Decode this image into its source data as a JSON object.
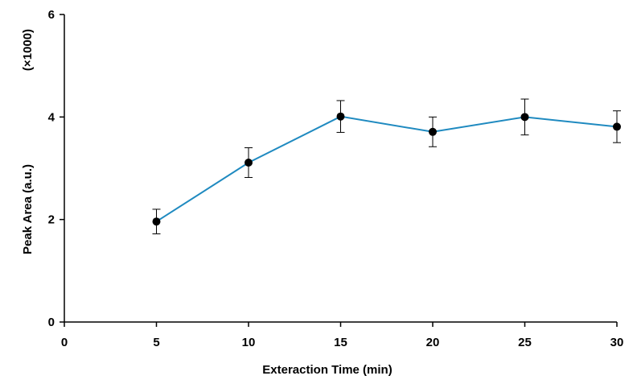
{
  "chart_data": {
    "type": "line",
    "title": "",
    "xlabel": "Exteraction Time (min)",
    "ylabel": "Peak Area (a.u.)",
    "yscale_note": "(×1000)",
    "xlim": [
      0,
      30
    ],
    "ylim": [
      0,
      6
    ],
    "xticks": [
      0,
      5,
      10,
      15,
      20,
      25,
      30
    ],
    "yticks": [
      0,
      2,
      4,
      6
    ],
    "grid": false,
    "legend": "none",
    "series": [
      {
        "name": "Peak Area",
        "color": "#1f8ac0",
        "marker_color": "#000000",
        "x": [
          5,
          10,
          15,
          20,
          25,
          30
        ],
        "y": [
          1.96,
          3.11,
          4.01,
          3.71,
          4.0,
          3.81
        ],
        "error": [
          0.24,
          0.29,
          0.31,
          0.29,
          0.35,
          0.31
        ]
      }
    ]
  }
}
